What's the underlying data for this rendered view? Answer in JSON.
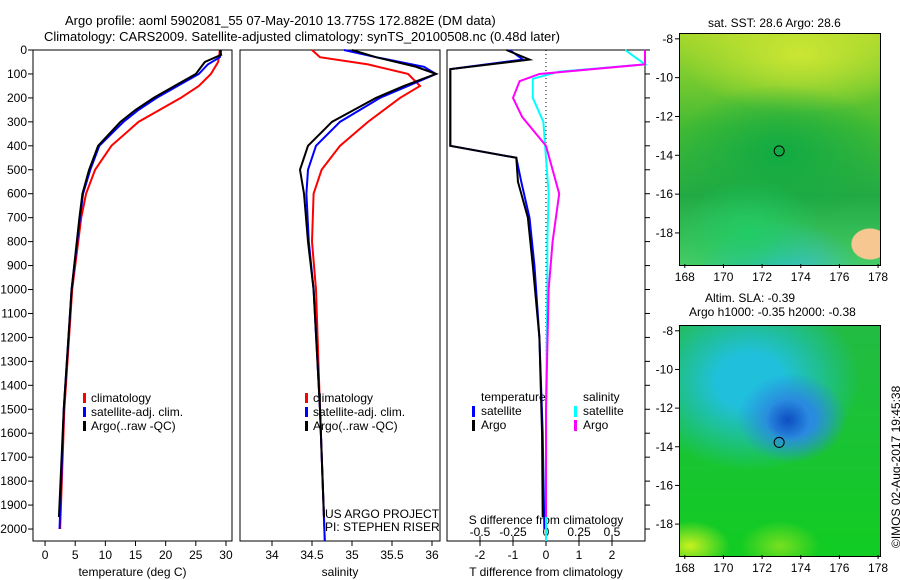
{
  "title_line1": "Argo profile: aoml 5902081_55 07-May-2010 13.775S 172.882E (DM data)",
  "title_line2": "Climatology: CARS2009. Satellite-adjusted climatology: synTS_20100508.nc (0.48d later)",
  "credit": "US ARGO PROJECT",
  "pi": "PI: STEPHEN RISER",
  "stamp": "©IMOS 02-Aug-2017 19:45:38",
  "colors": {
    "climatology": "#ff0000",
    "satellite": "#0000ff",
    "argo": "#000000",
    "sal_satellite": "#00ffff",
    "sal_argo": "#ff00ff"
  },
  "chart_data": [
    {
      "type": "line",
      "xlabel": "temperature (deg C)",
      "ylabel": "",
      "xlim": [
        -2,
        31
      ],
      "ylim": [
        2050,
        0
      ],
      "xticks": [
        0,
        5,
        10,
        15,
        20,
        25,
        30
      ],
      "yticks": [
        0,
        100,
        200,
        300,
        400,
        500,
        600,
        700,
        800,
        900,
        1000,
        1100,
        1200,
        1300,
        1400,
        1500,
        1600,
        1700,
        1800,
        1900,
        2000
      ],
      "legend": [
        "climatology",
        "satellite-adj. clim.",
        "Argo(..raw -QC)"
      ],
      "series": [
        {
          "name": "climatology",
          "color": "#ff0000",
          "depth": [
            0,
            50,
            100,
            150,
            200,
            250,
            300,
            400,
            500,
            600,
            700,
            1000,
            1500,
            2000
          ],
          "values": [
            29,
            28.7,
            27.5,
            25.5,
            22.5,
            19,
            15.5,
            11,
            8.3,
            6.8,
            6,
            4.5,
            3.2,
            2.5
          ]
        },
        {
          "name": "satellite-adj. clim.",
          "color": "#0000ff",
          "depth": [
            0,
            30,
            60,
            100,
            150,
            200,
            250,
            300,
            400,
            500,
            600,
            700,
            1000,
            1500,
            2000
          ],
          "values": [
            29.2,
            29,
            27,
            25.5,
            22,
            18.5,
            15.5,
            13,
            9,
            7.5,
            6.3,
            5.8,
            4.4,
            3.1,
            2.4
          ]
        },
        {
          "name": "Argo(..raw -QC)",
          "color": "#000000",
          "depth": [
            0,
            20,
            50,
            100,
            150,
            200,
            250,
            300,
            400,
            500,
            600,
            700,
            1000,
            1500,
            1950
          ],
          "values": [
            29,
            29.2,
            26.5,
            25,
            21.5,
            18,
            15,
            12.5,
            8.8,
            7.3,
            6.2,
            5.7,
            4.4,
            3.1,
            2.3
          ]
        }
      ]
    },
    {
      "type": "line",
      "xlabel": "salinity",
      "ylabel": "",
      "xlim": [
        33.6,
        36.1
      ],
      "ylim": [
        2050,
        0
      ],
      "xticks": [
        34,
        34.5,
        35,
        35.5,
        36
      ],
      "legend": [
        "climatology",
        "satellite-adj. clim.",
        "Argo(..raw -QC)"
      ],
      "series": [
        {
          "name": "climatology",
          "color": "#ff0000",
          "depth": [
            0,
            30,
            60,
            100,
            150,
            200,
            300,
            400,
            500,
            600,
            800,
            1000,
            1500,
            2050
          ],
          "values": [
            34.5,
            34.6,
            35.2,
            35.7,
            35.85,
            35.6,
            35.2,
            34.85,
            34.62,
            34.52,
            34.5,
            34.55,
            34.6,
            34.66
          ]
        },
        {
          "name": "satellite-adj. clim.",
          "color": "#0000ff",
          "depth": [
            0,
            30,
            70,
            100,
            150,
            200,
            300,
            400,
            500,
            600,
            800,
            1000,
            1500,
            2050
          ],
          "values": [
            34.9,
            35.3,
            35.9,
            36.05,
            35.7,
            35.35,
            34.85,
            34.55,
            34.45,
            34.43,
            34.46,
            34.52,
            34.6,
            34.66
          ]
        },
        {
          "name": "Argo(..raw -QC)",
          "color": "#000000",
          "depth": [
            0,
            30,
            70,
            100,
            150,
            200,
            300,
            400,
            500,
            600,
            800,
            1000,
            1500,
            1950
          ],
          "values": [
            35.0,
            35.3,
            35.8,
            36.05,
            35.65,
            35.3,
            34.75,
            34.45,
            34.35,
            34.4,
            34.45,
            34.52,
            34.6,
            34.65
          ]
        }
      ]
    },
    {
      "type": "line",
      "xlabel": "T difference from climatology",
      "x2label": "S difference from climatology",
      "xlim": [
        -3,
        3
      ],
      "x2lim": [
        -0.75,
        0.75
      ],
      "ylim": [
        2050,
        0
      ],
      "xticks": [
        -2,
        -1,
        0,
        1,
        2
      ],
      "x2ticks": [
        -0.5,
        -0.25,
        0,
        0.25,
        0.5
      ],
      "legend_left_title": "temperature",
      "legend_right_title": "salinity",
      "legend_left": [
        "satellite",
        "Argo"
      ],
      "legend_right": [
        "satellite",
        "Argo"
      ],
      "series": [
        {
          "name": "T satellite",
          "color": "#0000ff",
          "axis": "T",
          "depth": [
            0,
            40,
            80,
            200,
            400,
            450,
            550,
            700,
            900,
            1200,
            1600,
            2000
          ],
          "values": [
            -1.1,
            -0.7,
            -2.9,
            -2.9,
            -2.9,
            -0.9,
            -0.75,
            -0.5,
            -0.35,
            -0.2,
            -0.1,
            -0.05
          ]
        },
        {
          "name": "T Argo",
          "color": "#000000",
          "axis": "T",
          "depth": [
            0,
            40,
            80,
            200,
            400,
            450,
            550,
            700,
            900,
            1200,
            1600,
            1950
          ],
          "values": [
            -1.2,
            -0.5,
            -2.9,
            -2.9,
            -2.9,
            -0.9,
            -0.85,
            -0.55,
            -0.4,
            -0.2,
            -0.12,
            -0.1
          ]
        },
        {
          "name": "S satellite",
          "color": "#00ffff",
          "axis": "S",
          "depth": [
            0,
            60,
            90,
            120,
            200,
            300,
            450,
            600,
            800,
            1000,
            1500,
            2050
          ],
          "values": [
            0.6,
            0.9,
            0.1,
            -0.1,
            -0.1,
            -0.02,
            0,
            0.02,
            0.01,
            0.01,
            0,
            0
          ]
        },
        {
          "name": "S Argo",
          "color": "#ff00ff",
          "axis": "S",
          "depth": [
            0,
            60,
            100,
            130,
            200,
            280,
            400,
            600,
            800,
            1000,
            1500,
            1950
          ],
          "values": [
            0.75,
            0.9,
            -0.05,
            -0.2,
            -0.25,
            -0.18,
            0,
            0.1,
            0.05,
            0.02,
            0,
            0
          ]
        }
      ]
    },
    {
      "type": "heatmap",
      "title": "sat. SST: 28.6 Argo: 28.6",
      "xticks": [
        168,
        170,
        172,
        174,
        176,
        178
      ],
      "yticks": [
        -8,
        -10,
        -12,
        -14,
        -16,
        -18
      ],
      "argo_position": [
        172.882,
        -13.775
      ]
    },
    {
      "type": "heatmap",
      "title": "Altim. SLA: -0.39",
      "subtitle": "Argo h1000: -0.35 h2000: -0.38",
      "xticks": [
        168,
        170,
        172,
        174,
        176,
        178
      ],
      "yticks": [
        -8,
        -10,
        -12,
        -14,
        -16,
        -18
      ],
      "argo_position": [
        172.882,
        -13.775
      ]
    }
  ]
}
